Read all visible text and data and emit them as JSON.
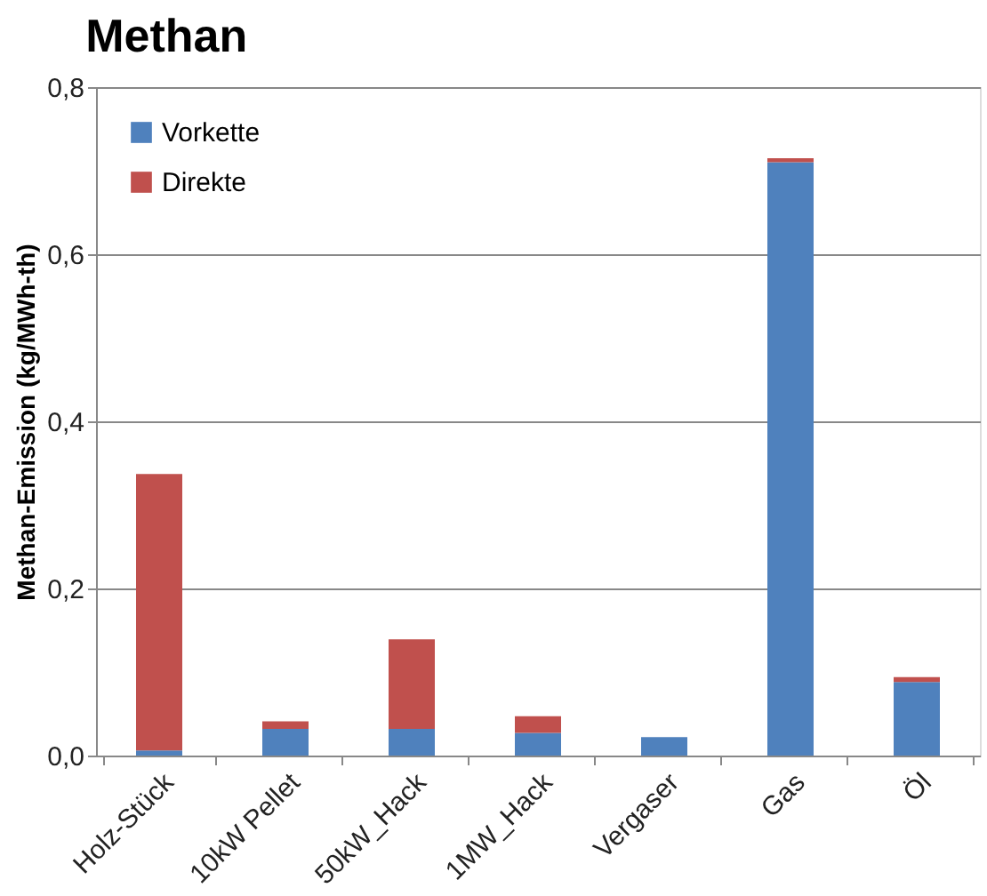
{
  "chart_data": {
    "type": "bar",
    "title": "Methan",
    "ylabel": "Methan-Emission  (kg/MWh-th)",
    "categories": [
      "Holz-Stück",
      "10kW Pellet",
      "50kW_Hack",
      "1MW_Hack",
      "Vergaser",
      "Gas",
      "Öl"
    ],
    "stacked": true,
    "series": [
      {
        "name": "Vorkette",
        "color": "#4f81bd",
        "values": [
          0.006,
          0.032,
          0.032,
          0.027,
          0.022,
          0.71,
          0.088
        ]
      },
      {
        "name": "Direkte",
        "color": "#c0504d",
        "values": [
          0.331,
          0.009,
          0.107,
          0.02,
          0,
          0.005,
          0.006
        ]
      }
    ],
    "ylim": [
      0,
      0.8
    ],
    "yticks": [
      {
        "value": 0,
        "label": "0,0"
      },
      {
        "value": 0.2,
        "label": "0,2"
      },
      {
        "value": 0.4,
        "label": "0,4"
      },
      {
        "value": 0.6,
        "label": "0,6"
      },
      {
        "value": 0.8,
        "label": "0,8"
      }
    ],
    "grid": "y",
    "legend": "top left"
  }
}
